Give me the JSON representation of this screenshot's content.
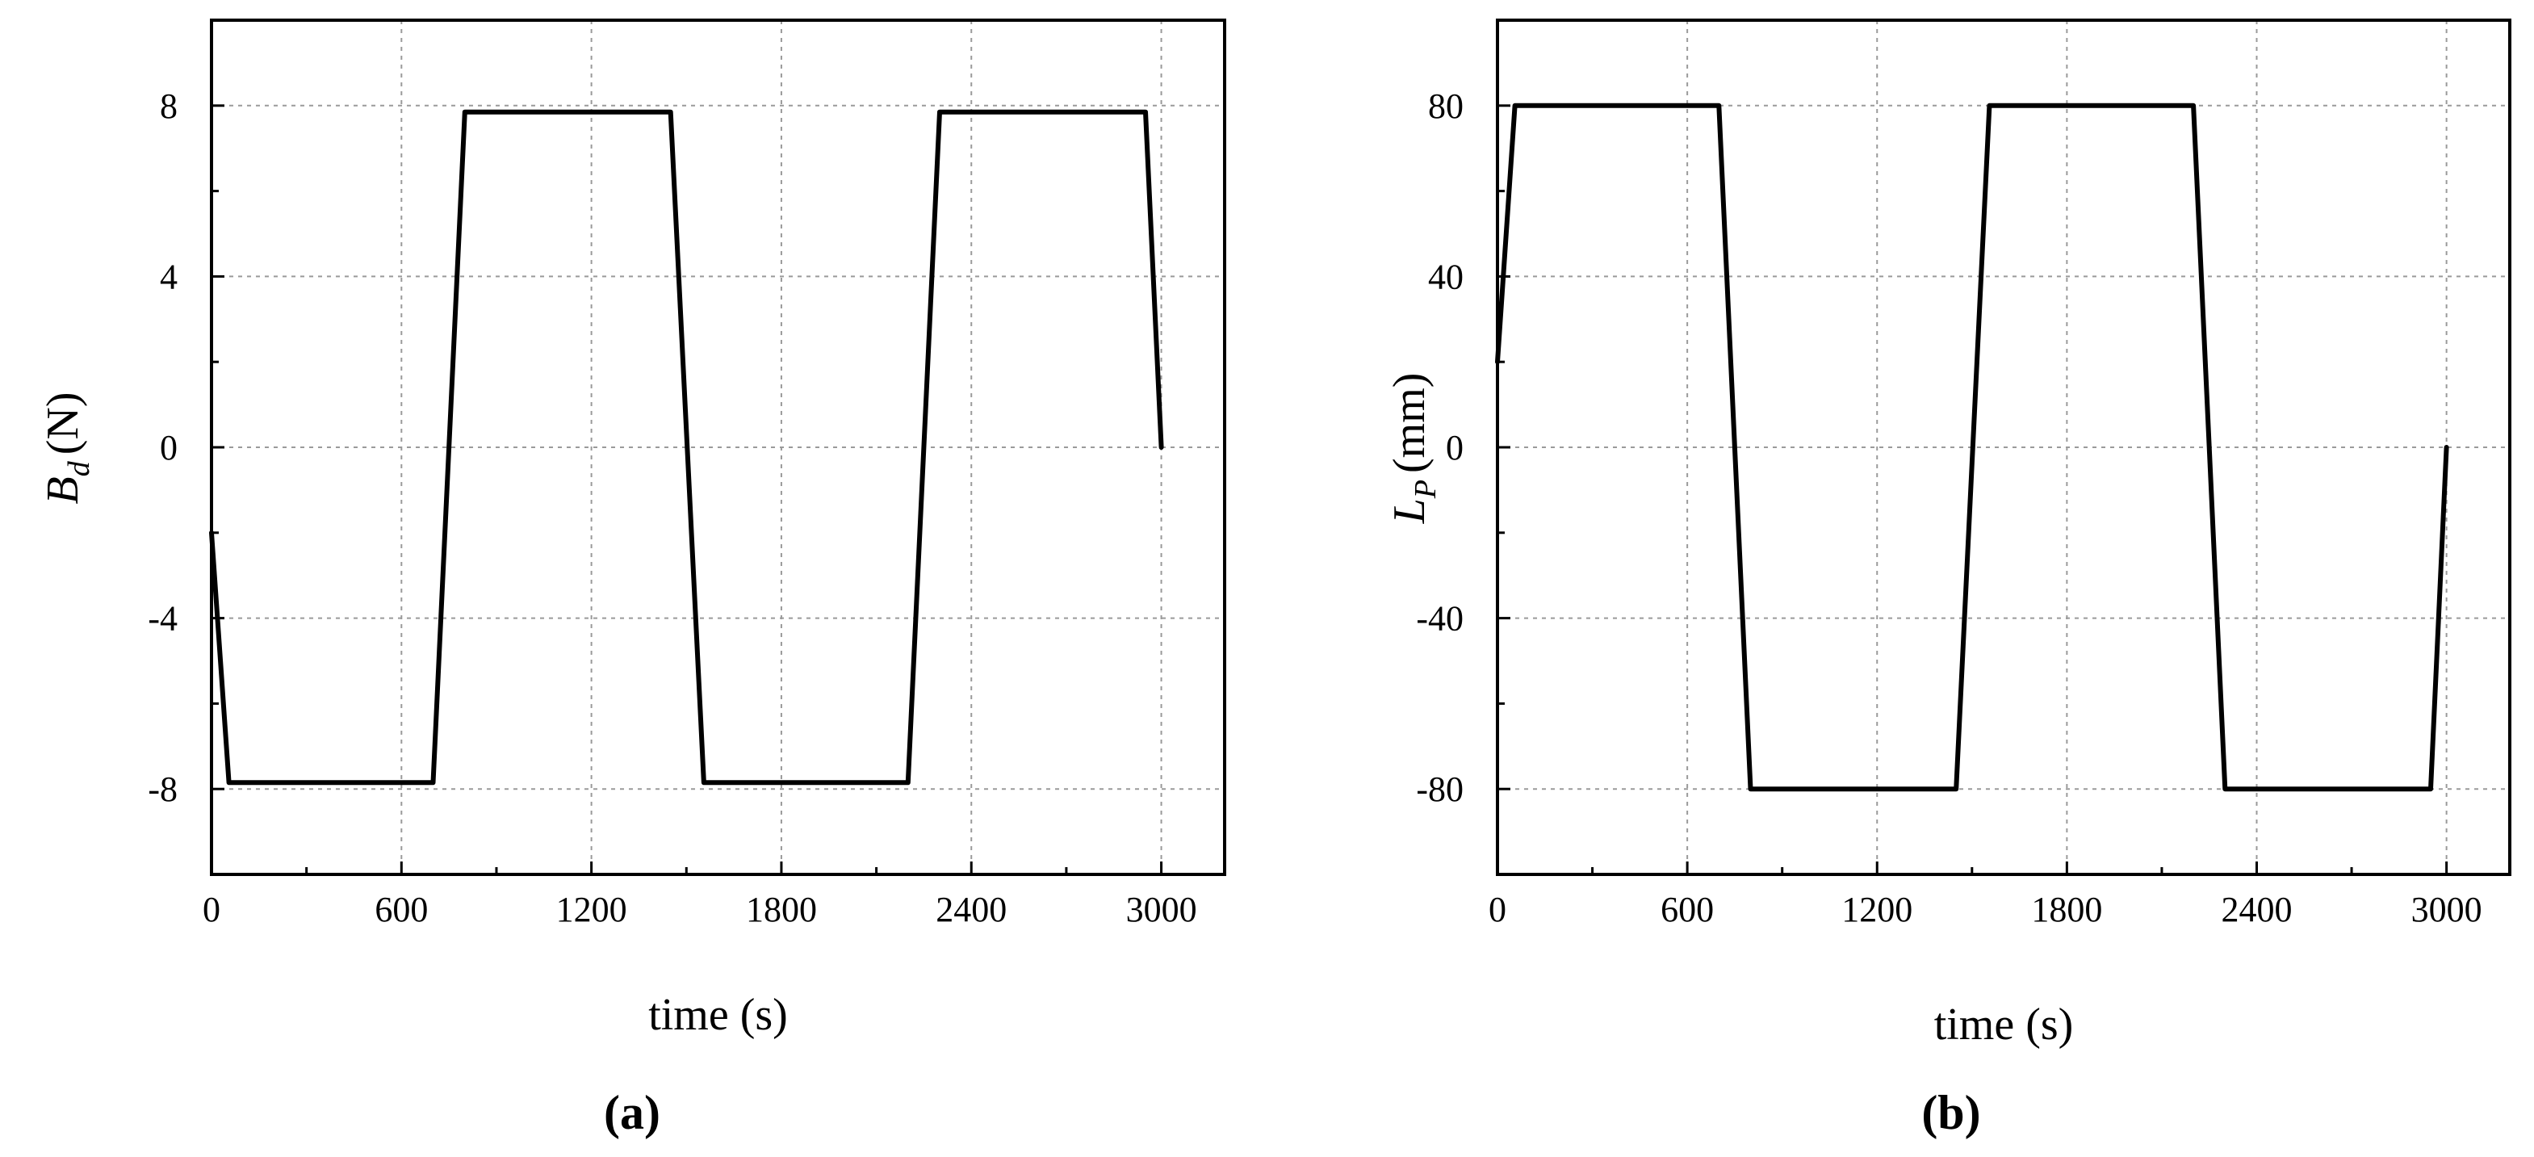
{
  "chart_data": [
    {
      "type": "line",
      "panel_label": "(a)",
      "xlabel": "time (s)",
      "ylabel_main": "B",
      "ylabel_sub": "d",
      "ylabel_unit": "(N)",
      "xlim": [
        0,
        3200
      ],
      "ylim": [
        -10,
        10
      ],
      "xticks": [
        0,
        600,
        1200,
        1800,
        2400,
        3000
      ],
      "xtick_labels": [
        "0",
        "600",
        "1200",
        "1800",
        "2400",
        "3000"
      ],
      "xminor": [
        300,
        900,
        1500,
        2100,
        2700
      ],
      "yticks": [
        -8,
        -4,
        0,
        4,
        8
      ],
      "ytick_labels": [
        "-8",
        "-4",
        "0",
        "4",
        "8"
      ],
      "yminor": [
        -10,
        -6,
        -2,
        2,
        6,
        10
      ],
      "grid": true,
      "series": [
        {
          "x": [
            0,
            55,
            700,
            800,
            1450,
            1555,
            2200,
            2300,
            2950,
            3000
          ],
          "y": [
            -2,
            -7.85,
            -7.85,
            7.85,
            7.85,
            -7.85,
            -7.85,
            7.85,
            7.85,
            0
          ]
        }
      ]
    },
    {
      "type": "line",
      "panel_label": "(b)",
      "xlabel": "time (s)",
      "ylabel_main": "L",
      "ylabel_sub": "P",
      "ylabel_unit": "(mm)",
      "xlim": [
        0,
        3200
      ],
      "ylim": [
        -100,
        100
      ],
      "xticks": [
        0,
        600,
        1200,
        1800,
        2400,
        3000
      ],
      "xtick_labels": [
        "0",
        "600",
        "1200",
        "1800",
        "2400",
        "3000"
      ],
      "xminor": [
        300,
        900,
        1500,
        2100,
        2700
      ],
      "yticks": [
        -80,
        -40,
        0,
        40,
        80
      ],
      "ytick_labels": [
        "-80",
        "-40",
        "0",
        "40",
        "80"
      ],
      "yminor": [
        -100,
        -60,
        -20,
        20,
        60,
        100
      ],
      "grid": true,
      "series": [
        {
          "x": [
            0,
            55,
            700,
            800,
            1450,
            1555,
            2200,
            2300,
            2950,
            3000
          ],
          "y": [
            20,
            80,
            80,
            -80,
            -80,
            80,
            80,
            -80,
            -80,
            0
          ]
        }
      ]
    }
  ]
}
